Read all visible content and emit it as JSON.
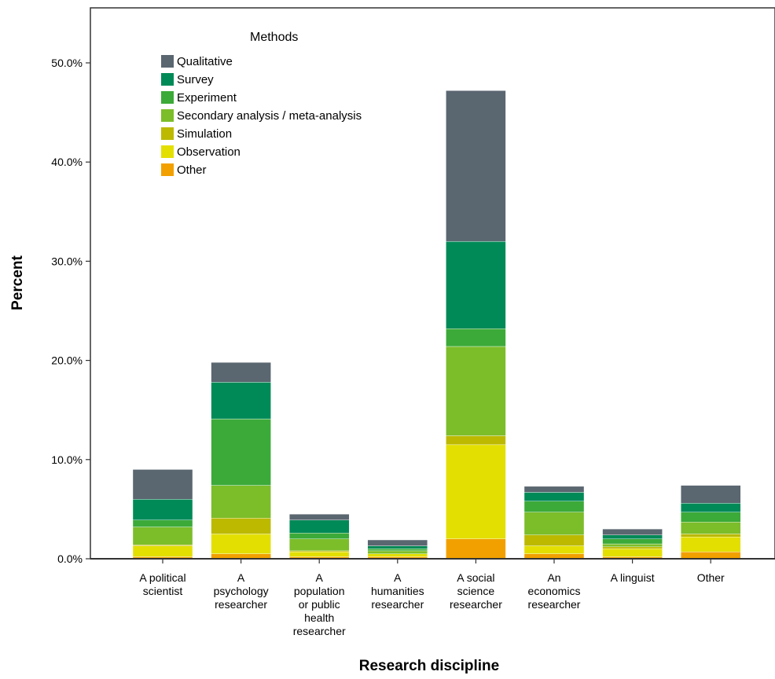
{
  "chart_data": {
    "type": "bar",
    "stacked": true,
    "xlabel": "Research discipline",
    "ylabel": "Percent",
    "ylim": [
      0,
      50
    ],
    "yticks": [
      "0.0%",
      "10.0%",
      "20.0%",
      "30.0%",
      "40.0%",
      "50.0%"
    ],
    "ytick_values": [
      0,
      10,
      20,
      30,
      40,
      50
    ],
    "grid": false,
    "legend": {
      "title": "Methods",
      "placement": "top-left"
    },
    "categories": [
      [
        "A political",
        "scientist"
      ],
      [
        "A",
        "psychology",
        "researcher"
      ],
      [
        "A",
        "population",
        "or public",
        "health",
        "researcher"
      ],
      [
        "A",
        "humanities",
        "researcher"
      ],
      [
        "A social",
        "science",
        "researcher"
      ],
      [
        "An",
        "economics",
        "researcher"
      ],
      [
        "A linguist"
      ],
      [
        "Other"
      ]
    ],
    "series": [
      {
        "name": "Other",
        "color": "#f2a000",
        "values": [
          0.2,
          0.5,
          0.2,
          0.2,
          2.0,
          0.5,
          0.2,
          0.7
        ]
      },
      {
        "name": "Observation",
        "color": "#e3df00",
        "values": [
          1.1,
          2.0,
          0.5,
          0.3,
          9.5,
          0.8,
          0.8,
          1.5
        ]
      },
      {
        "name": "Simulation",
        "color": "#bcb900",
        "values": [
          0.1,
          1.6,
          0.1,
          0.0,
          0.9,
          1.1,
          0.2,
          0.3
        ]
      },
      {
        "name": "Secondary analysis / meta-analysis",
        "color": "#7cbd2a",
        "values": [
          1.8,
          3.3,
          1.2,
          0.3,
          9.0,
          2.3,
          0.3,
          1.2
        ]
      },
      {
        "name": "Experiment",
        "color": "#3caa38",
        "values": [
          0.7,
          6.7,
          0.6,
          0.2,
          1.8,
          1.1,
          0.5,
          1.0
        ]
      },
      {
        "name": "Survey",
        "color": "#008a57",
        "values": [
          2.1,
          3.7,
          1.3,
          0.3,
          8.8,
          0.9,
          0.4,
          0.9
        ]
      },
      {
        "name": "Qualitative",
        "color": "#5a6670",
        "values": [
          3.0,
          2.0,
          0.6,
          0.6,
          15.2,
          0.6,
          0.6,
          1.8
        ]
      }
    ],
    "legend_order": [
      "Qualitative",
      "Survey",
      "Experiment",
      "Secondary analysis / meta-analysis",
      "Simulation",
      "Observation",
      "Other"
    ]
  }
}
